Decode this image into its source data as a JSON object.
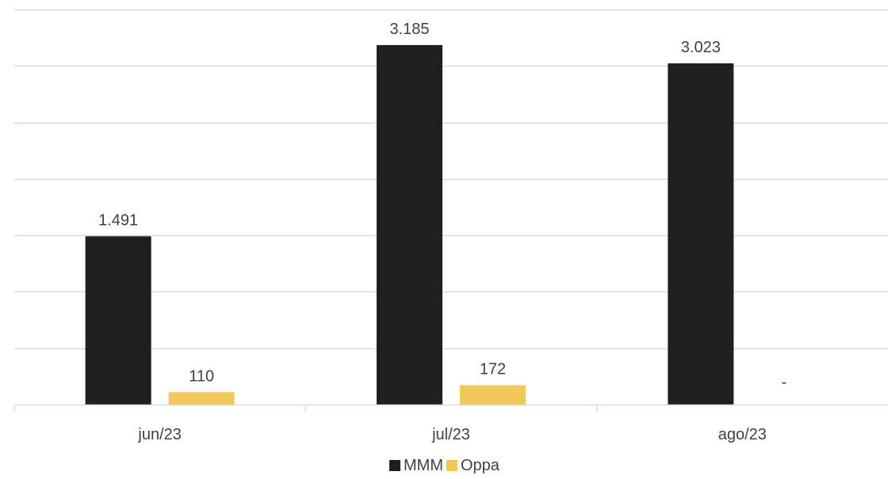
{
  "chart_data": {
    "type": "bar",
    "categories": [
      "jun/23",
      "jul/23",
      "ago/23"
    ],
    "series": [
      {
        "name": "MMM",
        "values": [
          1491,
          3185,
          3023
        ],
        "labels": [
          "1.491",
          "3.185",
          "3.023"
        ],
        "color": "#1f1f1f"
      },
      {
        "name": "Oppa",
        "values": [
          110,
          172,
          0
        ],
        "labels": [
          "110",
          "172",
          "-"
        ],
        "color": "#f2c85b"
      }
    ],
    "title": "",
    "xlabel": "",
    "ylabel": "",
    "ylim": [
      0,
      3500
    ],
    "ytick_step": 500,
    "grid": true,
    "legend": "bottom",
    "colors": {
      "gridline": "#d9d9d9",
      "axis": "#d9d9d9",
      "text": "#404040"
    }
  }
}
